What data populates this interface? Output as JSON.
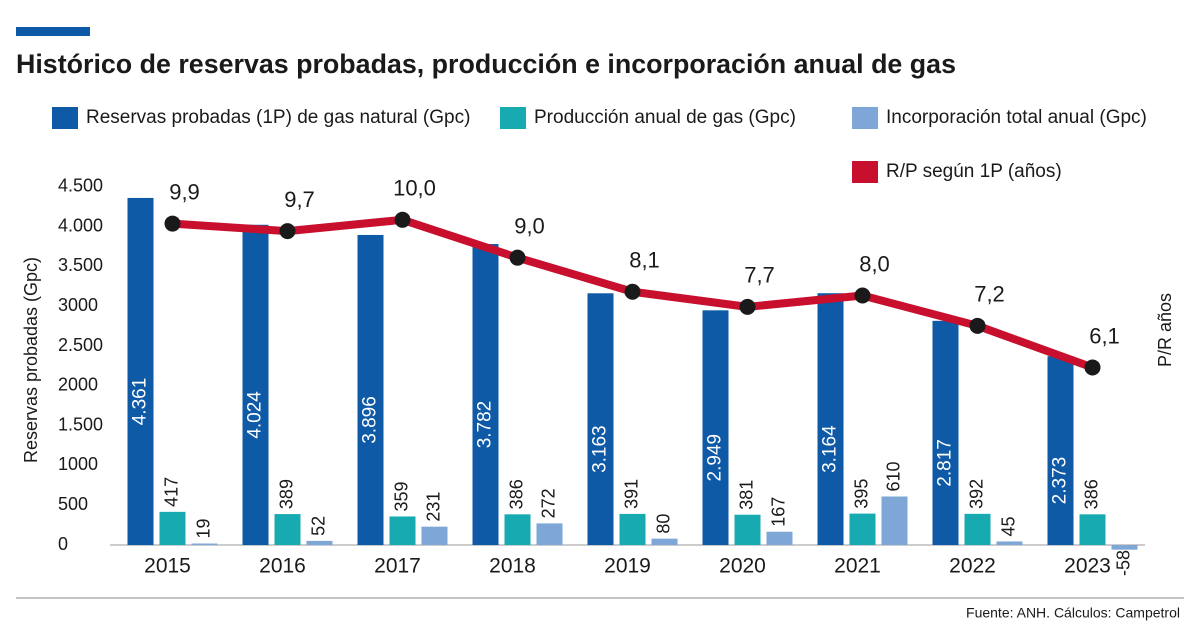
{
  "chart_data": {
    "type": "bar",
    "title": "Histórico de reservas probadas, producción e incorporación anual de gas",
    "ylabel": "Reservas probadas (Gpc)",
    "y2label": "P/R años",
    "source": "Fuente: ANH. Cálculos: Campetrol",
    "categories": [
      "2015",
      "2016",
      "2017",
      "2018",
      "2019",
      "2020",
      "2021",
      "2022",
      "2023"
    ],
    "series": [
      {
        "name": "Reservas probadas (1P) de gas natural (Gpc)",
        "type": "bar",
        "color": "#0e5aa7",
        "values": [
          4361,
          4024,
          3896,
          3782,
          3163,
          2949,
          3164,
          2817,
          2373
        ],
        "value_labels": [
          "4.361",
          "4.024",
          "3.896",
          "3.782",
          "3.163",
          "2.949",
          "3.164",
          "2.817",
          "2.373"
        ]
      },
      {
        "name": "Producción anual de gas (Gpc)",
        "type": "bar",
        "color": "#17abb1",
        "values": [
          417,
          389,
          359,
          386,
          391,
          381,
          395,
          392,
          386
        ]
      },
      {
        "name": "Incorporación total anual (Gpc)",
        "type": "bar",
        "color": "#7ea6d6",
        "values": [
          19,
          52,
          231,
          272,
          80,
          167,
          610,
          45,
          -58
        ]
      },
      {
        "name": "R/P según 1P (años)",
        "type": "line",
        "axis": "y2",
        "color": "#c8102e",
        "values": [
          9.9,
          9.7,
          10.0,
          9.0,
          8.1,
          7.7,
          8.0,
          7.2,
          6.1
        ],
        "value_labels": [
          "9,9",
          "9,7",
          "10,0",
          "9,0",
          "8,1",
          "7,7",
          "8,0",
          "7,2",
          "6,1"
        ]
      }
    ],
    "ylim": [
      -100,
      4800
    ],
    "yticks": [
      0,
      500,
      1000,
      {
        "value": 1500,
        "label": "1.500"
      },
      2000,
      {
        "value": 2500,
        "label": "2.500"
      },
      3000,
      {
        "value": 3500,
        "label": "3.500"
      },
      {
        "value": 4000,
        "label": "4.000"
      },
      {
        "value": 4500,
        "label": "4.500"
      }
    ],
    "y2lim": [
      1.2,
      11.5
    ],
    "grid": false
  }
}
